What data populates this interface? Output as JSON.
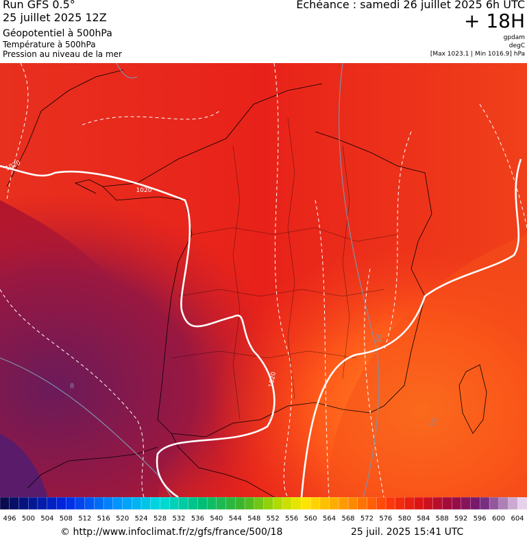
{
  "header": {
    "run": "Run GFS 0.5°",
    "date": "25 juillet 2025 12Z",
    "layer1": "Géopotentiel à 500hPa",
    "layer2": "Température à 500hPa",
    "layer3": "Pression au niveau de la mer",
    "echeance": "Echéance : samedi 26 juillet 2025 6h UTC",
    "offset": "+ 18H",
    "unit1": "gpdam",
    "unit2": "degC",
    "range": "[Max 1023.1 | Min 1016.9] hPa"
  },
  "map": {
    "contour_labels": [
      "1020",
      "1020",
      "1020",
      "8",
      "16",
      "16"
    ]
  },
  "colorbar": {
    "labels": [
      496,
      500,
      504,
      508,
      512,
      516,
      520,
      524,
      528,
      532,
      536,
      540,
      544,
      548,
      552,
      556,
      560,
      564,
      568,
      572,
      576,
      580,
      584,
      588,
      592,
      596,
      600,
      604
    ]
  },
  "footer": {
    "url": "© http://www.infoclimat.fr/z/gfs/france/500/18",
    "timestamp": "25 juil. 2025 15:41 UTC"
  }
}
